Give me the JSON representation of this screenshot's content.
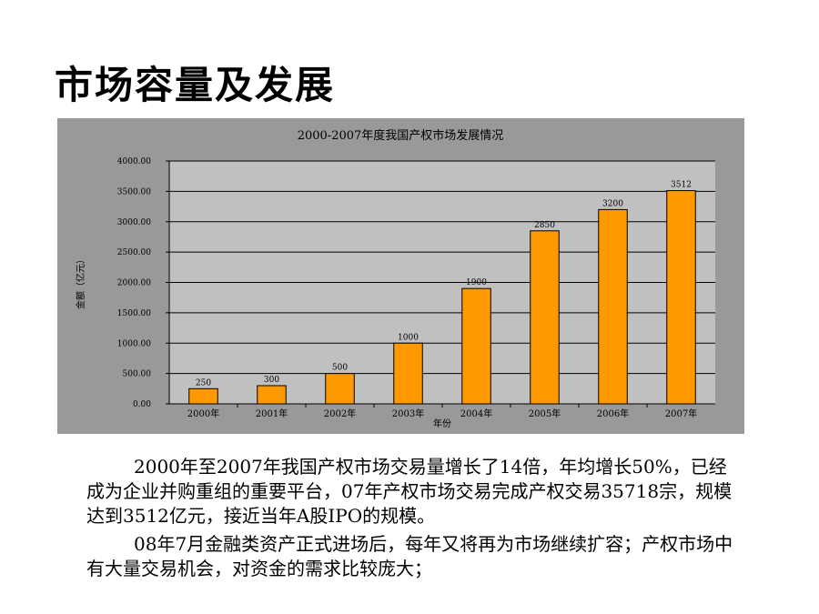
{
  "slide": {
    "title": "市场容量及发展"
  },
  "chart_data": {
    "type": "bar",
    "title": "2000-2007年度我国产权市场发展情况",
    "xlabel": "年份",
    "ylabel": "金额（亿元）",
    "categories": [
      "2000年",
      "2001年",
      "2002年",
      "2003年",
      "2004年",
      "2005年",
      "2006年",
      "2007年"
    ],
    "values": [
      250,
      300,
      500,
      1000,
      1900,
      2850,
      3200,
      3512
    ],
    "data_labels": [
      "250",
      "300",
      "500",
      "1000",
      "1900",
      "2850",
      "3200",
      "3512"
    ],
    "ylim": [
      0,
      4000
    ],
    "yticks": [
      0,
      500,
      1000,
      1500,
      2000,
      2500,
      3000,
      3500,
      4000
    ],
    "ytick_labels": [
      "0.00",
      "500.00",
      "1000.00",
      "1500.00",
      "2000.00",
      "2500.00",
      "3000.00",
      "3500.00",
      "4000.00"
    ],
    "grid": true,
    "colors": {
      "bar": "#FF9900",
      "plot_bg": "#C0C0C0",
      "frame_bg": "#999999"
    }
  },
  "body": {
    "para1": "2000年至2007年我国产权市场交易量增长了14倍，年均增长50%，已经成为企业并购重组的重要平台，07年产权市场交易完成产权交易35718宗，规模达到3512亿元，接近当年A股IPO的规模。",
    "para2": "08年7月金融类资产正式进场后，每年又将再为市场继续扩容；产权市场中有大量交易机会，对资金的需求比较庞大；"
  }
}
